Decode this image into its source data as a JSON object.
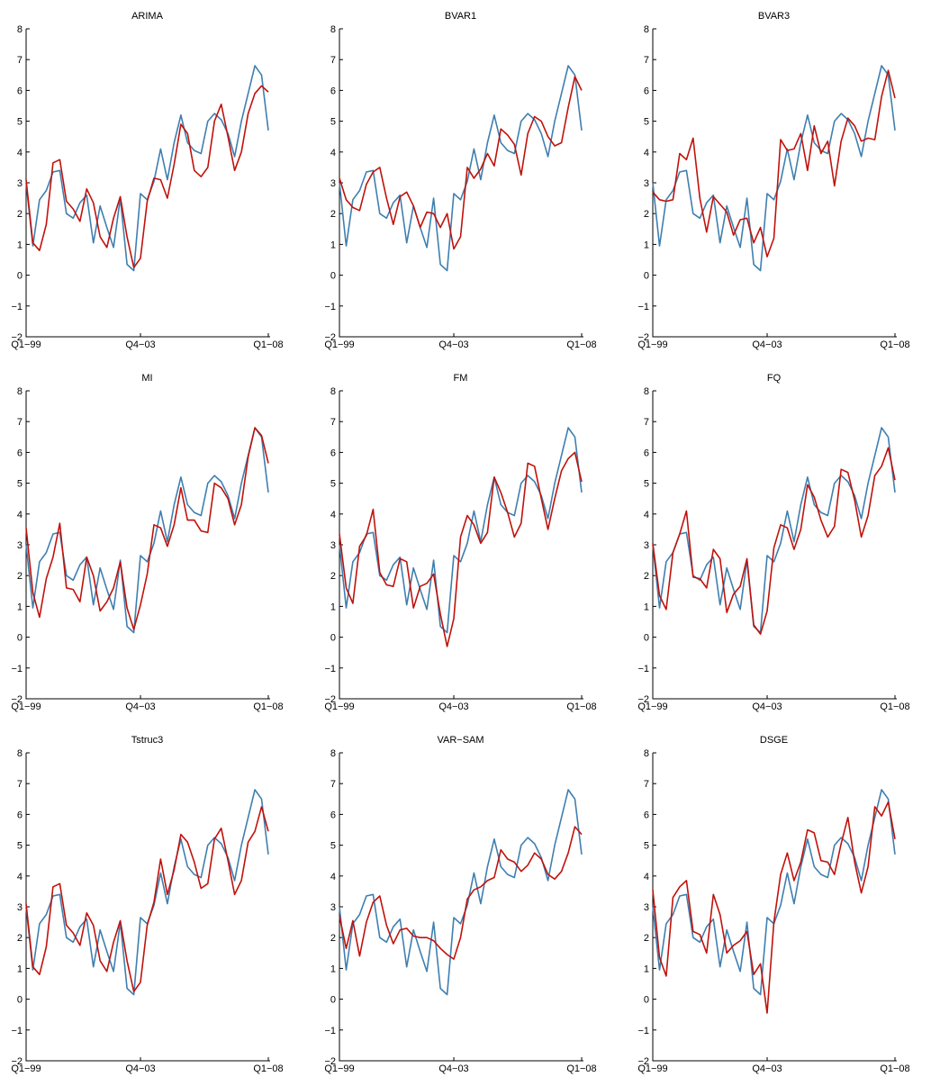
{
  "chart_data": [
    {
      "type": "line",
      "title": "ARIMA",
      "x_tick_labels": [
        "Q1−99",
        "Q4−03",
        "Q1−08"
      ],
      "y_tick_labels": [
        "−2",
        "−1",
        "0",
        "1",
        "2",
        "3",
        "4",
        "5",
        "6",
        "7",
        "8"
      ],
      "ylim": [
        -2,
        8
      ],
      "n_points": 37,
      "series": [
        {
          "color": "#3f7fb0",
          "values": [
            3.0,
            0.95,
            2.45,
            2.75,
            3.35,
            3.4,
            2.0,
            1.85,
            2.35,
            2.6,
            1.05,
            2.25,
            1.55,
            0.9,
            2.5,
            0.35,
            0.15,
            2.65,
            2.45,
            3.05,
            4.1,
            3.1,
            4.3,
            5.2,
            4.3,
            4.05,
            3.95,
            5.0,
            5.25,
            5.05,
            4.6,
            3.85,
            5.0,
            5.9,
            6.8,
            6.5,
            4.7
          ]
        },
        {
          "color": "#c0120c",
          "values": [
            3.1,
            1.05,
            0.8,
            1.65,
            3.65,
            3.75,
            2.4,
            2.15,
            1.75,
            2.8,
            2.35,
            1.25,
            0.9,
            1.85,
            2.55,
            1.25,
            0.25,
            0.55,
            2.4,
            3.15,
            3.1,
            2.5,
            3.6,
            4.9,
            4.6,
            3.4,
            3.2,
            3.5,
            5.0,
            5.55,
            4.5,
            3.4,
            4.0,
            5.25,
            5.9,
            6.15,
            5.95
          ]
        }
      ]
    },
    {
      "type": "line",
      "title": "BVAR1",
      "x_tick_labels": [
        "Q1−99",
        "Q4−03",
        "Q1−08"
      ],
      "y_tick_labels": [
        "−2",
        "−1",
        "0",
        "1",
        "2",
        "3",
        "4",
        "5",
        "6",
        "7",
        "8"
      ],
      "ylim": [
        -2,
        8
      ],
      "n_points": 37,
      "series": [
        {
          "color": "#3f7fb0",
          "values": [
            3.0,
            0.95,
            2.45,
            2.75,
            3.35,
            3.4,
            2.0,
            1.85,
            2.35,
            2.6,
            1.05,
            2.25,
            1.55,
            0.9,
            2.5,
            0.35,
            0.15,
            2.65,
            2.45,
            3.05,
            4.1,
            3.1,
            4.3,
            5.2,
            4.3,
            4.05,
            3.95,
            5.0,
            5.25,
            5.05,
            4.6,
            3.85,
            5.0,
            5.9,
            6.8,
            6.5,
            4.7
          ]
        },
        {
          "color": "#c0120c",
          "values": [
            3.15,
            2.45,
            2.2,
            2.1,
            2.95,
            3.35,
            3.5,
            2.5,
            1.65,
            2.55,
            2.7,
            2.25,
            1.55,
            2.05,
            2.0,
            1.55,
            2.0,
            0.85,
            1.25,
            3.5,
            3.15,
            3.45,
            3.95,
            3.55,
            4.75,
            4.55,
            4.25,
            3.25,
            4.6,
            5.15,
            5.0,
            4.5,
            4.2,
            4.3,
            5.45,
            6.45,
            6.0
          ]
        }
      ]
    },
    {
      "type": "line",
      "title": "BVAR3",
      "x_tick_labels": [
        "Q1−99",
        "Q4−03",
        "Q1−08"
      ],
      "y_tick_labels": [
        "−2",
        "−1",
        "0",
        "1",
        "2",
        "3",
        "4",
        "5",
        "6",
        "7",
        "8"
      ],
      "ylim": [
        -2,
        8
      ],
      "n_points": 37,
      "series": [
        {
          "color": "#3f7fb0",
          "values": [
            3.0,
            0.95,
            2.45,
            2.75,
            3.35,
            3.4,
            2.0,
            1.85,
            2.35,
            2.6,
            1.05,
            2.25,
            1.55,
            0.9,
            2.5,
            0.35,
            0.15,
            2.65,
            2.45,
            3.05,
            4.1,
            3.1,
            4.3,
            5.2,
            4.3,
            4.05,
            3.95,
            5.0,
            5.25,
            5.05,
            4.6,
            3.85,
            5.0,
            5.9,
            6.8,
            6.5,
            4.7
          ]
        },
        {
          "color": "#c0120c",
          "values": [
            2.7,
            2.45,
            2.4,
            2.45,
            3.95,
            3.75,
            4.45,
            2.5,
            1.4,
            2.55,
            2.3,
            2.05,
            1.3,
            1.8,
            1.85,
            1.05,
            1.55,
            0.6,
            1.2,
            4.4,
            4.05,
            4.1,
            4.6,
            3.4,
            4.85,
            3.95,
            4.35,
            2.9,
            4.35,
            5.1,
            4.85,
            4.35,
            4.45,
            4.4,
            5.8,
            6.65,
            5.75
          ]
        }
      ]
    },
    {
      "type": "line",
      "title": "MI",
      "x_tick_labels": [
        "Q1−99",
        "Q4−03",
        "Q1−08"
      ],
      "y_tick_labels": [
        "−2",
        "−1",
        "0",
        "1",
        "2",
        "3",
        "4",
        "5",
        "6",
        "7",
        "8"
      ],
      "ylim": [
        -2,
        8
      ],
      "n_points": 37,
      "series": [
        {
          "color": "#3f7fb0",
          "values": [
            3.0,
            0.95,
            2.45,
            2.75,
            3.35,
            3.4,
            2.0,
            1.85,
            2.35,
            2.6,
            1.05,
            2.25,
            1.55,
            0.9,
            2.5,
            0.35,
            0.15,
            2.65,
            2.45,
            3.05,
            4.1,
            3.1,
            4.3,
            5.2,
            4.3,
            4.05,
            3.95,
            5.0,
            5.25,
            5.05,
            4.6,
            3.85,
            5.0,
            5.9,
            6.8,
            6.5,
            4.7
          ]
        },
        {
          "color": "#c0120c",
          "values": [
            3.55,
            1.45,
            0.65,
            1.9,
            2.6,
            3.7,
            1.6,
            1.55,
            1.15,
            2.6,
            2.0,
            0.85,
            1.15,
            1.6,
            2.45,
            0.95,
            0.25,
            1.05,
            2.05,
            3.65,
            3.55,
            2.95,
            3.65,
            4.85,
            3.8,
            3.8,
            3.45,
            3.4,
            5.0,
            4.85,
            4.5,
            3.65,
            4.3,
            5.85,
            6.8,
            6.55,
            5.65
          ]
        }
      ]
    },
    {
      "type": "line",
      "title": "FM",
      "x_tick_labels": [
        "Q1−99",
        "Q4−03",
        "Q1−08"
      ],
      "y_tick_labels": [
        "−2",
        "−1",
        "0",
        "1",
        "2",
        "3",
        "4",
        "5",
        "6",
        "7",
        "8"
      ],
      "ylim": [
        -2,
        8
      ],
      "n_points": 37,
      "series": [
        {
          "color": "#3f7fb0",
          "values": [
            3.0,
            0.95,
            2.45,
            2.75,
            3.35,
            3.4,
            2.0,
            1.85,
            2.35,
            2.6,
            1.05,
            2.25,
            1.55,
            0.9,
            2.5,
            0.35,
            0.15,
            2.65,
            2.45,
            3.05,
            4.1,
            3.1,
            4.3,
            5.2,
            4.3,
            4.05,
            3.95,
            5.0,
            5.25,
            5.05,
            4.6,
            3.85,
            5.0,
            5.9,
            6.8,
            6.5,
            4.7
          ]
        },
        {
          "color": "#c0120c",
          "values": [
            3.35,
            1.6,
            1.1,
            2.95,
            3.3,
            4.15,
            2.1,
            1.7,
            1.65,
            2.55,
            2.45,
            0.95,
            1.65,
            1.75,
            2.05,
            0.75,
            -0.3,
            0.6,
            3.25,
            3.95,
            3.65,
            3.05,
            3.4,
            5.2,
            4.7,
            4.05,
            3.25,
            3.7,
            5.65,
            5.55,
            4.5,
            3.5,
            4.5,
            5.4,
            5.8,
            6.0,
            5.05
          ]
        }
      ]
    },
    {
      "type": "line",
      "title": "FQ",
      "x_tick_labels": [
        "Q1−99",
        "Q4−03",
        "Q1−08"
      ],
      "y_tick_labels": [
        "−2",
        "−1",
        "0",
        "1",
        "2",
        "3",
        "4",
        "5",
        "6",
        "7",
        "8"
      ],
      "ylim": [
        -2,
        8
      ],
      "n_points": 37,
      "series": [
        {
          "color": "#3f7fb0",
          "values": [
            3.0,
            0.95,
            2.45,
            2.75,
            3.35,
            3.4,
            2.0,
            1.85,
            2.35,
            2.6,
            1.05,
            2.25,
            1.55,
            0.9,
            2.5,
            0.35,
            0.15,
            2.65,
            2.45,
            3.05,
            4.1,
            3.1,
            4.3,
            5.2,
            4.3,
            4.05,
            3.95,
            5.0,
            5.25,
            5.05,
            4.6,
            3.85,
            5.0,
            5.9,
            6.8,
            6.5,
            4.7
          ]
        },
        {
          "color": "#c0120c",
          "values": [
            3.05,
            1.35,
            0.9,
            2.75,
            3.35,
            4.1,
            1.95,
            1.9,
            1.6,
            2.85,
            2.55,
            0.8,
            1.4,
            1.65,
            2.55,
            0.4,
            0.1,
            0.85,
            2.9,
            3.65,
            3.55,
            2.85,
            3.5,
            4.95,
            4.55,
            3.8,
            3.25,
            3.6,
            5.45,
            5.35,
            4.45,
            3.25,
            3.95,
            5.25,
            5.55,
            6.15,
            5.1
          ]
        }
      ]
    },
    {
      "type": "line",
      "title": "Tstruc3",
      "x_tick_labels": [
        "Q1−99",
        "Q4−03",
        "Q1−08"
      ],
      "y_tick_labels": [
        "−2",
        "−1",
        "0",
        "1",
        "2",
        "3",
        "4",
        "5",
        "6",
        "7",
        "8"
      ],
      "ylim": [
        -2,
        8
      ],
      "n_points": 37,
      "series": [
        {
          "color": "#3f7fb0",
          "values": [
            3.0,
            0.95,
            2.45,
            2.75,
            3.35,
            3.4,
            2.0,
            1.85,
            2.35,
            2.6,
            1.05,
            2.25,
            1.55,
            0.9,
            2.5,
            0.35,
            0.15,
            2.65,
            2.45,
            3.05,
            4.1,
            3.1,
            4.3,
            5.2,
            4.3,
            4.05,
            3.95,
            5.0,
            5.25,
            5.05,
            4.6,
            3.85,
            5.0,
            5.9,
            6.8,
            6.5,
            4.7
          ]
        },
        {
          "color": "#c0120c",
          "values": [
            3.1,
            1.05,
            0.8,
            1.7,
            3.65,
            3.75,
            2.4,
            2.15,
            1.75,
            2.8,
            2.4,
            1.25,
            0.9,
            1.85,
            2.55,
            1.25,
            0.25,
            0.55,
            2.4,
            3.15,
            4.55,
            3.4,
            4.2,
            5.35,
            5.1,
            4.45,
            3.6,
            3.75,
            5.2,
            5.55,
            4.5,
            3.4,
            3.85,
            5.1,
            5.45,
            6.25,
            5.45
          ]
        }
      ]
    },
    {
      "type": "line",
      "title": "VAR−SAM",
      "x_tick_labels": [
        "Q1−99",
        "Q4−03",
        "Q1−08"
      ],
      "y_tick_labels": [
        "−2",
        "−1",
        "0",
        "1",
        "2",
        "3",
        "4",
        "5",
        "6",
        "7",
        "8"
      ],
      "ylim": [
        -2,
        8
      ],
      "n_points": 37,
      "series": [
        {
          "color": "#3f7fb0",
          "values": [
            3.0,
            0.95,
            2.45,
            2.75,
            3.35,
            3.4,
            2.0,
            1.85,
            2.35,
            2.6,
            1.05,
            2.25,
            1.55,
            0.9,
            2.5,
            0.35,
            0.15,
            2.65,
            2.45,
            3.05,
            4.1,
            3.1,
            4.3,
            5.2,
            4.3,
            4.05,
            3.95,
            5.0,
            5.25,
            5.05,
            4.6,
            3.85,
            5.0,
            5.9,
            6.8,
            6.5,
            4.7
          ]
        },
        {
          "color": "#c0120c",
          "values": [
            2.7,
            1.65,
            2.55,
            1.4,
            2.5,
            3.15,
            3.35,
            2.4,
            1.8,
            2.25,
            2.3,
            2.05,
            2.0,
            2.0,
            1.9,
            1.65,
            1.45,
            1.3,
            2.0,
            3.25,
            3.55,
            3.65,
            3.85,
            3.95,
            4.85,
            4.55,
            4.45,
            4.15,
            4.35,
            4.75,
            4.55,
            4.05,
            3.9,
            4.15,
            4.75,
            5.6,
            5.35
          ]
        }
      ]
    },
    {
      "type": "line",
      "title": "DSGE",
      "x_tick_labels": [
        "Q1−99",
        "Q4−03",
        "Q1−08"
      ],
      "y_tick_labels": [
        "−2",
        "−1",
        "0",
        "1",
        "2",
        "3",
        "4",
        "5",
        "6",
        "7",
        "8"
      ],
      "ylim": [
        -2,
        8
      ],
      "n_points": 37,
      "series": [
        {
          "color": "#3f7fb0",
          "values": [
            3.0,
            0.95,
            2.45,
            2.75,
            3.35,
            3.4,
            2.0,
            1.85,
            2.35,
            2.6,
            1.05,
            2.25,
            1.55,
            0.9,
            2.5,
            0.35,
            0.15,
            2.65,
            2.45,
            3.05,
            4.1,
            3.1,
            4.3,
            5.2,
            4.3,
            4.05,
            3.95,
            5.0,
            5.25,
            5.05,
            4.6,
            3.85,
            5.0,
            5.9,
            6.8,
            6.5,
            4.7
          ]
        },
        {
          "color": "#c0120c",
          "values": [
            3.55,
            1.35,
            0.75,
            3.3,
            3.65,
            3.85,
            2.2,
            2.1,
            1.5,
            3.4,
            2.75,
            1.5,
            1.75,
            1.9,
            2.2,
            0.8,
            1.15,
            -0.45,
            2.5,
            4.05,
            4.75,
            3.85,
            4.45,
            5.5,
            5.4,
            4.5,
            4.45,
            4.05,
            5.05,
            5.9,
            4.45,
            3.45,
            4.3,
            6.25,
            5.95,
            6.4,
            5.2
          ]
        }
      ]
    }
  ]
}
